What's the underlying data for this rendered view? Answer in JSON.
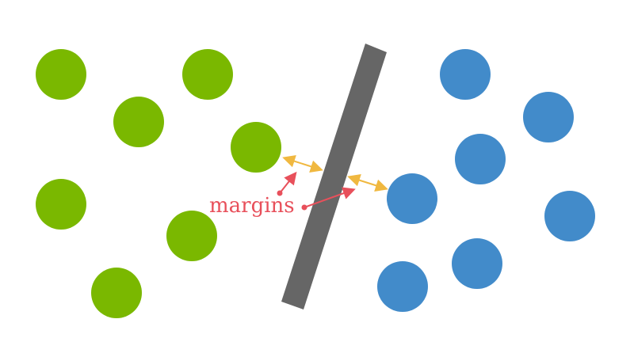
{
  "diagram": {
    "label": "margins",
    "colors": {
      "class_a": "#7ab800",
      "class_b": "#428bca",
      "separator": "#666666",
      "margin_arrow": "#f0b840",
      "label": "#e8505b",
      "background": "#ffffff"
    }
  }
}
